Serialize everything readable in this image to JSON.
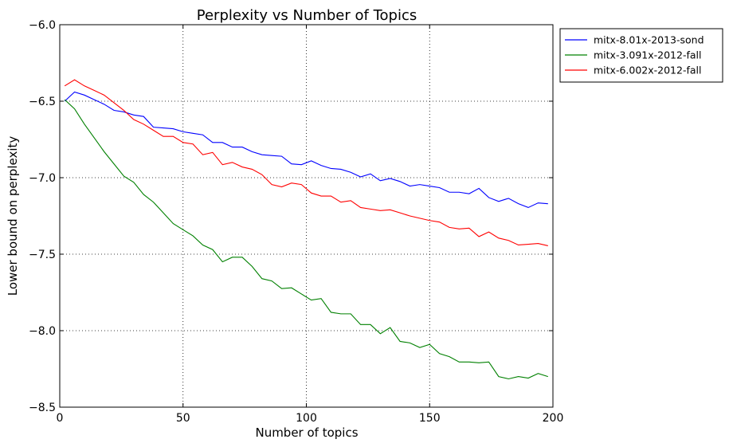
{
  "chart_data": {
    "type": "line",
    "title": "Perplexity vs Number of Topics",
    "xlabel": "Number of topics",
    "ylabel": "Lower bound on perplexity",
    "xlim": [
      0,
      200
    ],
    "ylim": [
      -8.5,
      -6.0
    ],
    "xticks": [
      0,
      50,
      100,
      150,
      200
    ],
    "xtick_labels": [
      "0",
      "50",
      "100",
      "150",
      "200"
    ],
    "yticks": [
      -6.0,
      -6.5,
      -7.0,
      -7.5,
      -8.0,
      -8.5
    ],
    "ytick_labels": [
      "−6.0",
      "−6.5",
      "−7.0",
      "−7.5",
      "−8.0",
      "−8.5"
    ],
    "grid": true,
    "legend_position": "outside-top-right",
    "x": [
      2,
      6,
      10,
      14,
      18,
      22,
      26,
      30,
      34,
      38,
      42,
      46,
      50,
      54,
      58,
      62,
      66,
      70,
      74,
      78,
      82,
      86,
      90,
      94,
      98,
      102,
      106,
      110,
      114,
      118,
      122,
      126,
      130,
      134,
      138,
      142,
      146,
      150,
      154,
      158,
      162,
      166,
      170,
      174,
      178,
      182,
      186,
      190,
      194,
      198
    ],
    "series": [
      {
        "name": "mitx-8.01x-2013-sond",
        "color": "#0000ff",
        "values": [
          -6.5,
          -6.44,
          -6.46,
          -6.49,
          -6.52,
          -6.56,
          -6.57,
          -6.59,
          -6.6,
          -6.67,
          -6.675,
          -6.68,
          -6.7,
          -6.71,
          -6.72,
          -6.77,
          -6.77,
          -6.8,
          -6.8,
          -6.83,
          -6.85,
          -6.855,
          -6.86,
          -6.91,
          -6.915,
          -6.89,
          -6.92,
          -6.94,
          -6.945,
          -6.965,
          -6.995,
          -6.975,
          -7.02,
          -7.005,
          -7.025,
          -7.055,
          -7.045,
          -7.055,
          -7.065,
          -7.095,
          -7.095,
          -7.105,
          -7.07,
          -7.13,
          -7.155,
          -7.135,
          -7.17,
          -7.195,
          -7.165,
          -7.17
        ]
      },
      {
        "name": "mitx-3.091x-2012-fall",
        "color": "#008000",
        "values": [
          -6.49,
          -6.55,
          -6.65,
          -6.74,
          -6.83,
          -6.91,
          -6.99,
          -7.03,
          -7.11,
          -7.16,
          -7.23,
          -7.3,
          -7.34,
          -7.38,
          -7.44,
          -7.47,
          -7.55,
          -7.52,
          -7.52,
          -7.58,
          -7.66,
          -7.675,
          -7.725,
          -7.72,
          -7.76,
          -7.8,
          -7.79,
          -7.88,
          -7.89,
          -7.89,
          -7.96,
          -7.96,
          -8.02,
          -7.98,
          -8.07,
          -8.08,
          -8.11,
          -8.09,
          -8.15,
          -8.17,
          -8.205,
          -8.205,
          -8.21,
          -8.205,
          -8.3,
          -8.315,
          -8.3,
          -8.31,
          -8.28,
          -8.3
        ]
      },
      {
        "name": "mitx-6.002x-2012-fall",
        "color": "#ff0000",
        "values": [
          -6.4,
          -6.36,
          -6.4,
          -6.43,
          -6.46,
          -6.51,
          -6.56,
          -6.62,
          -6.65,
          -6.69,
          -6.73,
          -6.73,
          -6.77,
          -6.78,
          -6.85,
          -6.835,
          -6.915,
          -6.9,
          -6.93,
          -6.945,
          -6.98,
          -7.045,
          -7.06,
          -7.035,
          -7.045,
          -7.1,
          -7.12,
          -7.12,
          -7.16,
          -7.15,
          -7.195,
          -7.205,
          -7.215,
          -7.21,
          -7.23,
          -7.25,
          -7.265,
          -7.28,
          -7.29,
          -7.325,
          -7.335,
          -7.33,
          -7.385,
          -7.355,
          -7.395,
          -7.41,
          -7.44,
          -7.435,
          -7.43,
          -7.445
        ]
      }
    ]
  }
}
